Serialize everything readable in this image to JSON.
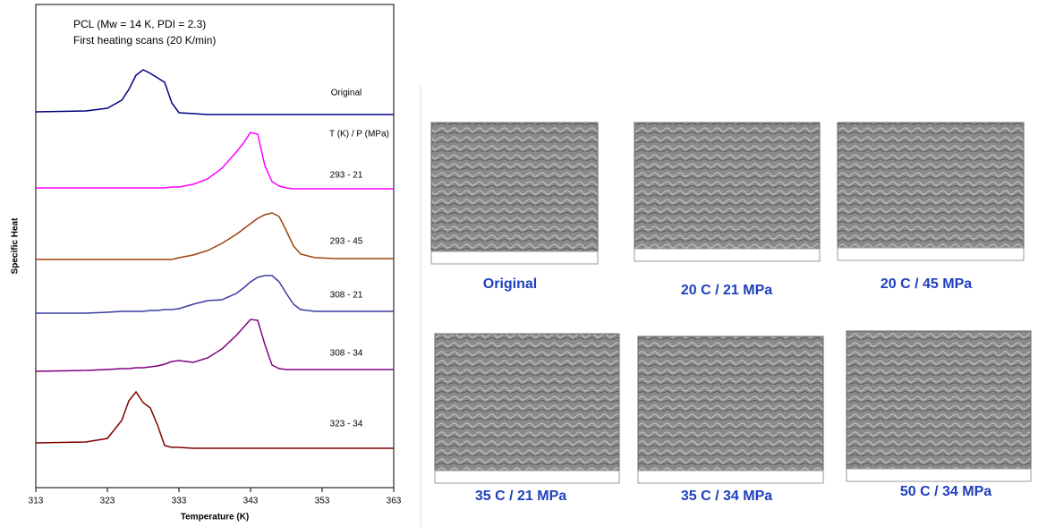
{
  "chart_data": {
    "type": "line",
    "annotations": [
      "PCL (Mw = 14 K, PDI = 2.3)",
      "First heating scans (20 K/min)",
      "T (K) / P (MPa)"
    ],
    "xlabel": "Temperature (K)",
    "ylabel": "Specific Heat",
    "x": [
      313,
      320,
      323,
      325,
      326,
      327,
      328,
      329,
      330,
      331,
      332,
      333,
      335,
      337,
      339,
      341,
      342,
      343,
      344,
      345,
      346,
      347,
      348,
      349,
      350,
      352,
      355,
      363
    ],
    "xlim": [
      313,
      363
    ],
    "xticks": [
      313,
      323,
      333,
      343,
      353,
      363
    ],
    "ylim": [
      0,
      540
    ],
    "grid": false,
    "series": [
      {
        "name": "Original",
        "color": "#000080",
        "values": [
          420,
          421,
          424,
          433,
          445,
          461,
          467,
          463,
          458,
          453,
          430,
          419,
          418,
          417,
          417,
          417,
          417,
          417,
          417,
          417,
          417,
          417,
          417,
          417,
          417,
          417,
          417,
          417
        ]
      },
      {
        "name": "293 - 21",
        "color": "#ff00ff",
        "values": [
          335,
          335,
          335,
          335,
          335,
          335,
          335,
          335,
          335,
          335,
          336,
          336,
          339,
          345,
          357,
          375,
          385,
          397,
          395,
          360,
          342,
          337,
          335,
          334,
          334,
          334,
          334,
          334
        ]
      },
      {
        "name": "293 - 45",
        "color": "#a0400a",
        "values": [
          255,
          255,
          255,
          255,
          255,
          255,
          255,
          255,
          255,
          255,
          255,
          257,
          260,
          265,
          273,
          283,
          289,
          295,
          301,
          305,
          307,
          303,
          287,
          270,
          261,
          257,
          256,
          256
        ]
      },
      {
        "name": "308 - 21",
        "color": "#3c3ca0",
        "values": [
          195,
          195,
          196,
          197,
          197,
          197,
          197,
          198,
          198,
          199,
          199,
          200,
          205,
          209,
          210,
          217,
          223,
          230,
          235,
          237,
          237,
          230,
          217,
          205,
          199,
          197,
          197,
          197
        ]
      },
      {
        "name": "308 - 34",
        "color": "#800080",
        "values": [
          130,
          131,
          132,
          133,
          133,
          134,
          134,
          135,
          136,
          138,
          141,
          142,
          140,
          145,
          155,
          170,
          179,
          188,
          187,
          160,
          137,
          133,
          132,
          132,
          132,
          132,
          132,
          132
        ]
      },
      {
        "name": "323 - 34",
        "color": "#800000",
        "values": [
          50,
          51,
          55,
          75,
          97,
          107,
          95,
          89,
          70,
          47,
          45,
          45,
          44,
          44,
          44,
          44,
          44,
          44,
          44,
          44,
          44,
          44,
          44,
          44,
          44,
          44,
          44,
          44
        ]
      }
    ]
  },
  "sem_images": {
    "captions": [
      "Original",
      "20 C / 21 MPa",
      "20 C / 45 MPa",
      "35 C / 21 MPa",
      "35 C / 34 MPa",
      "50 C / 34 MPa"
    ]
  }
}
